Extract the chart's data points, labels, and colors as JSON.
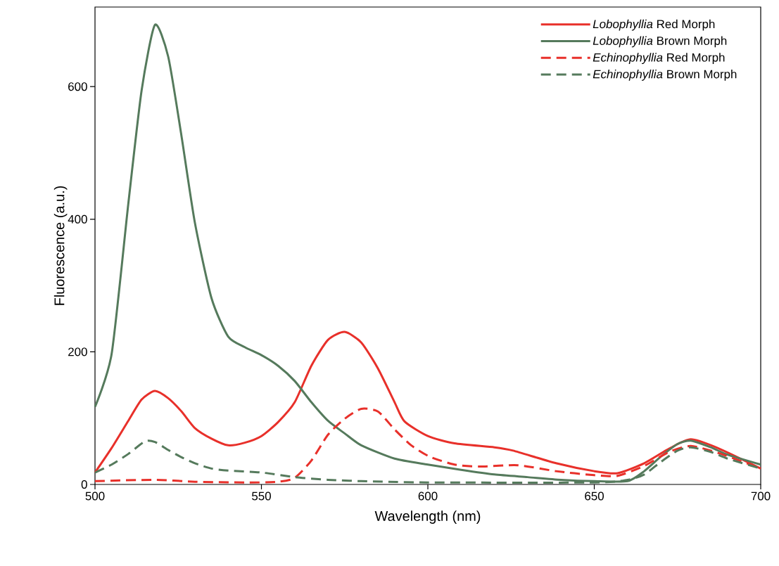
{
  "chart_data": {
    "type": "line",
    "xlabel": "Wavelength (nm)",
    "ylabel": "Fluorescence (a.u.)",
    "xlim": [
      500,
      700
    ],
    "ylim": [
      0,
      720
    ],
    "xticks": [
      500,
      550,
      600,
      650,
      700
    ],
    "yticks": [
      0,
      200,
      400,
      600
    ],
    "grid": false,
    "legend": "top right",
    "marker": "none",
    "series": [
      {
        "name": "*Lobophyllia* Red Morph",
        "color": "#e8302a",
        "line_style": "solid",
        "x": [
          500,
          505,
          510,
          514,
          518,
          522,
          526,
          530,
          535,
          540,
          545,
          550,
          555,
          560,
          565,
          570,
          575,
          580,
          585,
          590,
          593,
          600,
          608,
          620,
          625.6,
          638.5,
          650,
          657,
          665,
          672.5,
          679,
          687.5,
          700
        ],
        "values": [
          18,
          55,
          96,
          128,
          141,
          130,
          110,
          85,
          69,
          59,
          63,
          73,
          94,
          124,
          179,
          218,
          230,
          214,
          175,
          124,
          95,
          73,
          62,
          56,
          51,
          32,
          20,
          17,
          32,
          54,
          68,
          54,
          24
        ]
      },
      {
        "name": "*Lobophyllia* Brown Morph",
        "color": "#557a5c",
        "line_style": "solid",
        "x": [
          500,
          505,
          510,
          514,
          518,
          522,
          526,
          530,
          535,
          540,
          545,
          550,
          555,
          560,
          565,
          570,
          575,
          580,
          590,
          600,
          610,
          620,
          630,
          640,
          650,
          660,
          665,
          670,
          675,
          679,
          685,
          690,
          700
        ],
        "values": [
          117,
          197,
          423,
          594,
          693,
          645,
          525,
          395,
          281,
          223,
          207,
          195,
          179,
          156,
          124,
          96,
          77,
          59,
          39,
          30,
          22,
          15,
          11,
          7,
          5,
          5,
          20,
          42,
          61,
          66,
          56,
          45,
          30
        ]
      },
      {
        "name": "*Echinophyllia* Red Morph",
        "color": "#e8302a",
        "line_style": "dashed",
        "x": [
          500,
          518,
          530,
          545,
          555,
          560,
          565,
          570,
          575,
          580,
          585,
          590,
          595,
          600.5,
          608,
          615.5,
          627,
          638.5,
          650,
          657,
          665,
          672.5,
          679,
          687.5,
          700
        ],
        "values": [
          5,
          7,
          4,
          3,
          4,
          10,
          36,
          75,
          99,
          114,
          110,
          83,
          59,
          42,
          30,
          27,
          29,
          20,
          14,
          13,
          28,
          49,
          58,
          47,
          24
        ]
      },
      {
        "name": "*Echinophyllia* Brown Morph",
        "color": "#557a5c",
        "line_style": "dashed",
        "x": [
          500,
          505,
          510,
          515,
          518,
          522,
          526,
          530,
          535,
          540,
          550,
          560,
          570,
          580,
          600,
          650,
          660,
          665,
          670,
          675,
          679,
          685,
          690,
          700
        ],
        "values": [
          18,
          30,
          46,
          65,
          64,
          52,
          41,
          32,
          24,
          21,
          18,
          11,
          7,
          5,
          3,
          3,
          7,
          15,
          34,
          51,
          56,
          49,
          39,
          24
        ]
      }
    ]
  }
}
